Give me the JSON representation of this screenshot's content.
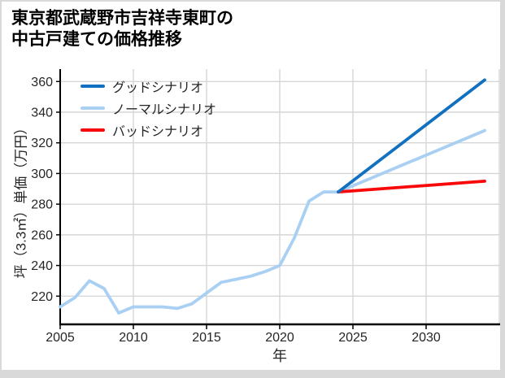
{
  "title": {
    "line1": "東京都武蔵野市吉祥寺東町の",
    "line2": "中古戸建ての価格推移"
  },
  "legend": {
    "items": [
      {
        "label": "グッドシナリオ"
      },
      {
        "label": "ノーマルシナリオ"
      },
      {
        "label": "バッドシナリオ"
      }
    ]
  },
  "chart_data": {
    "type": "line",
    "title": "東京都武蔵野市吉祥寺東町の中古戸建ての価格推移",
    "xlabel": "年",
    "ylabel": "坪（3.3㎡）単価（万円）",
    "xlim": [
      2005,
      2035
    ],
    "ylim": [
      201.6,
      368.1
    ],
    "xticks": [
      2005,
      2010,
      2015,
      2020,
      2025,
      2030
    ],
    "xgridlines": [
      2010,
      2015,
      2020,
      2025,
      2030,
      2035
    ],
    "yticks": [
      220,
      240,
      260,
      280,
      300,
      320,
      340,
      360
    ],
    "grid": true,
    "legend_position": "upper-left",
    "colors": {
      "good": "#1170bf",
      "normal": "#a9d0f3",
      "bad": "#f80808",
      "gridline": "#d6d6d6",
      "spine": "#000000",
      "tick_text": "#262626"
    },
    "series": [
      {
        "name": "グッドシナリオ",
        "color": "#1170bf",
        "x": [
          2024,
          2034
        ],
        "values": [
          288,
          361
        ]
      },
      {
        "name": "ノーマルシナリオ",
        "color": "#a9d0f3",
        "x": [
          2005,
          2006,
          2007,
          2008,
          2009,
          2010,
          2011,
          2012,
          2013,
          2014,
          2015,
          2016,
          2017,
          2018,
          2019,
          2020,
          2021,
          2022,
          2023,
          2024,
          2034
        ],
        "values": [
          213,
          219,
          230,
          225,
          209,
          213,
          213,
          213,
          212,
          215,
          222,
          229,
          231,
          233,
          236,
          240,
          258,
          282,
          288,
          288,
          328
        ]
      },
      {
        "name": "バッドシナリオ",
        "color": "#f80808",
        "x": [
          2024,
          2034
        ],
        "values": [
          288,
          295
        ]
      }
    ]
  }
}
